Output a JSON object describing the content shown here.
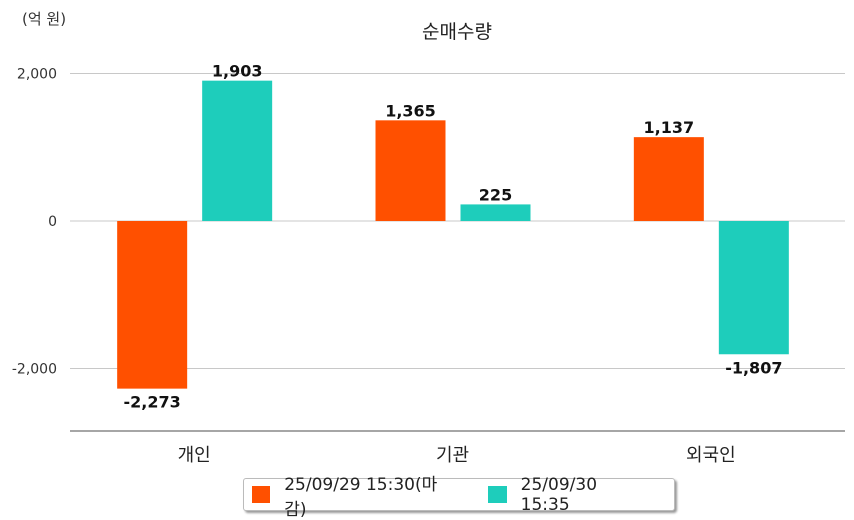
{
  "chart_data": {
    "type": "bar",
    "title": "순매수량",
    "unit_label": "(억 원)",
    "categories": [
      "개인",
      "기관",
      "외국인"
    ],
    "series": [
      {
        "name": "25/09/29 15:30(마감)",
        "color": "#ff5000",
        "values": [
          -2273,
          1365,
          1137
        ],
        "labels": [
          "-2,273",
          "1,365",
          "1,137"
        ]
      },
      {
        "name": "25/09/30 15:35",
        "color": "#1ecdbb",
        "values": [
          1903,
          225,
          -1807
        ],
        "labels": [
          "1,903",
          "225",
          "-1,807"
        ]
      }
    ],
    "yticks": [
      2000,
      0,
      -2000
    ],
    "ytick_labels": [
      "2,000",
      "0",
      "-2,000"
    ],
    "ylim": [
      -2850,
      2400
    ],
    "grid": true,
    "legend": "bottom"
  }
}
